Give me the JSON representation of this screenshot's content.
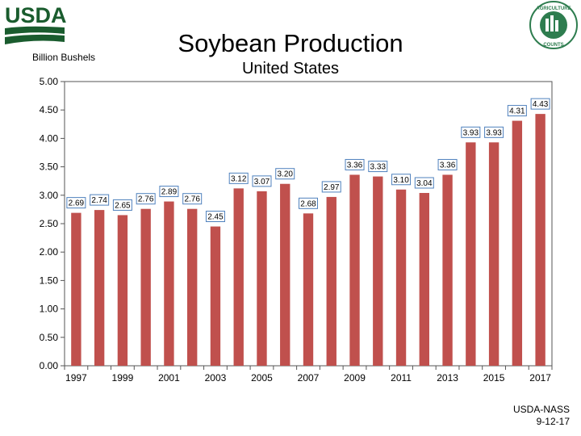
{
  "header": {
    "logo_text": "USDA",
    "seal_text_top": "AGRICULTURE",
    "seal_text_bottom": "COUNTS"
  },
  "chart_data": {
    "type": "bar",
    "title": "Soybean Production",
    "subtitle": "United States",
    "ylabel": "Billion Bushels",
    "xlabel": "",
    "ylim": [
      0,
      5
    ],
    "yticks": [
      "0.00",
      "0.50",
      "1.00",
      "1.50",
      "2.00",
      "2.50",
      "3.00",
      "3.50",
      "4.00",
      "4.50",
      "5.00"
    ],
    "categories": [
      "1997",
      "1998",
      "1999",
      "2000",
      "2001",
      "2002",
      "2003",
      "2004",
      "2005",
      "2006",
      "2007",
      "2008",
      "2009",
      "2010",
      "2011",
      "2012",
      "2013",
      "2014",
      "2015",
      "2016",
      "2017"
    ],
    "xtick_labels": [
      "1997",
      "1999",
      "2001",
      "2003",
      "2005",
      "2007",
      "2009",
      "2011",
      "2013",
      "2015",
      "2017"
    ],
    "values": [
      2.69,
      2.74,
      2.65,
      2.76,
      2.89,
      2.76,
      2.45,
      3.12,
      3.07,
      3.2,
      2.68,
      2.97,
      3.36,
      3.33,
      3.1,
      3.04,
      3.36,
      3.93,
      3.93,
      4.31,
      4.43
    ],
    "data_labels": [
      "2.69",
      "2.74",
      "2.65",
      "2.76",
      "2.89",
      "2.76",
      "2.45",
      "3.12",
      "3.07",
      "3.20",
      "2.68",
      "2.97",
      "3.36",
      "3.33",
      "3.10",
      "3.04",
      "3.36",
      "3.93",
      "3.93",
      "4.31",
      "4.43"
    ],
    "bar_color": "#c0504d",
    "label_border_color": "#4f81bd",
    "grid": false
  },
  "footer": {
    "source_line1": "USDA-NASS",
    "source_line2": "9-12-17"
  }
}
